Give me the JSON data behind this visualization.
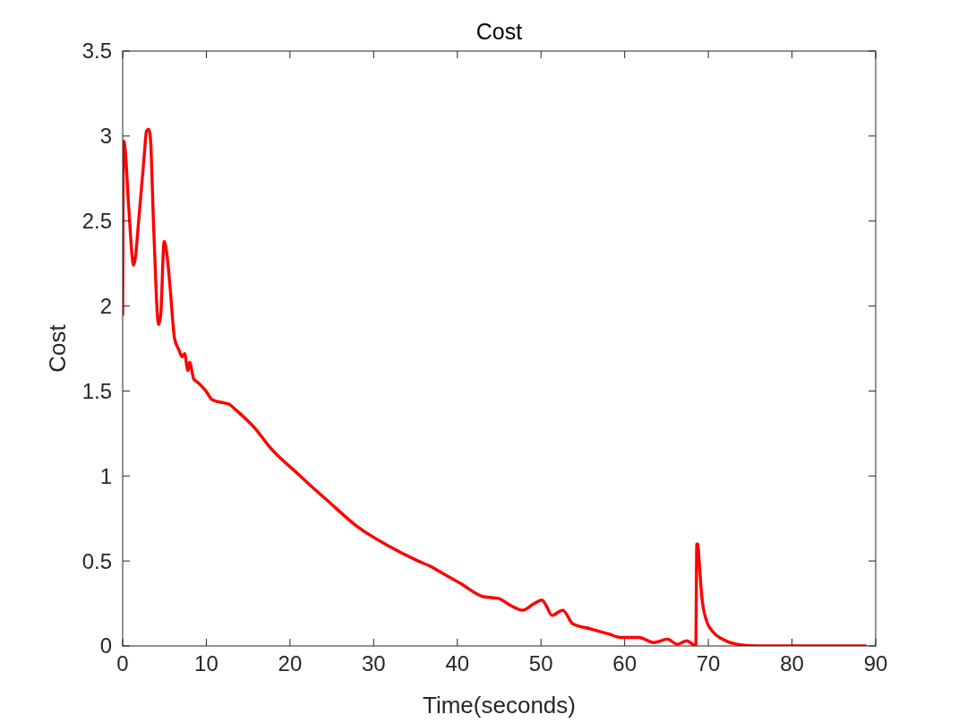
{
  "chart_data": {
    "type": "line",
    "title": "Cost",
    "xlabel": "Time(seconds)",
    "ylabel": "Cost",
    "xlim": [
      0,
      90
    ],
    "ylim": [
      0,
      3.5
    ],
    "xticks": [
      0,
      10,
      20,
      30,
      40,
      50,
      60,
      70,
      80,
      90
    ],
    "yticks": [
      0,
      0.5,
      1,
      1.5,
      2,
      2.5,
      3,
      3.5
    ],
    "grid": false,
    "x": [
      0,
      0.06,
      0.14,
      0.3,
      0.7,
      1.32,
      2.0,
      2.6,
      2.85,
      3.1,
      3.3,
      3.7,
      4.3,
      4.55,
      4.96,
      5.3,
      5.67,
      6.2,
      6.74,
      7.1,
      7.4,
      7.8,
      8.0,
      8.5,
      9.0,
      9.95,
      10.67,
      12.09,
      12.8,
      13.5,
      16.0,
      17.4,
      21.0,
      24.6,
      28.1,
      31.7,
      35.3,
      36.7,
      38.5,
      40.3,
      43.1,
      44.9,
      46.3,
      47.8,
      49.2,
      50.1,
      50.6,
      51.3,
      52.6,
      53.8,
      56.0,
      58.1,
      59.5,
      61.7,
      63.5,
      65.1,
      66.3,
      67.4,
      68.5,
      68.62,
      68.74,
      68.9,
      69.2,
      69.7,
      70.6,
      71.7,
      73.4,
      76.0,
      88.8
    ],
    "series": [
      {
        "color": "#ff0000",
        "values": [
          1.95,
          2.75,
          2.97,
          2.92,
          2.6,
          2.24,
          2.55,
          2.9,
          3.03,
          3.04,
          3.0,
          2.47,
          1.89,
          1.95,
          2.38,
          2.3,
          2.11,
          1.81,
          1.74,
          1.7,
          1.72,
          1.62,
          1.67,
          1.57,
          1.55,
          1.5,
          1.45,
          1.43,
          1.42,
          1.39,
          1.27,
          1.18,
          1.01,
          0.85,
          0.7,
          0.59,
          0.5,
          0.47,
          0.42,
          0.37,
          0.29,
          0.28,
          0.24,
          0.21,
          0.25,
          0.27,
          0.24,
          0.18,
          0.21,
          0.13,
          0.1,
          0.07,
          0.05,
          0.05,
          0.02,
          0.04,
          0.01,
          0.03,
          0.0,
          0.6,
          0.6,
          0.5,
          0.3,
          0.16,
          0.08,
          0.04,
          0.01,
          0.0,
          0.0
        ]
      }
    ]
  }
}
